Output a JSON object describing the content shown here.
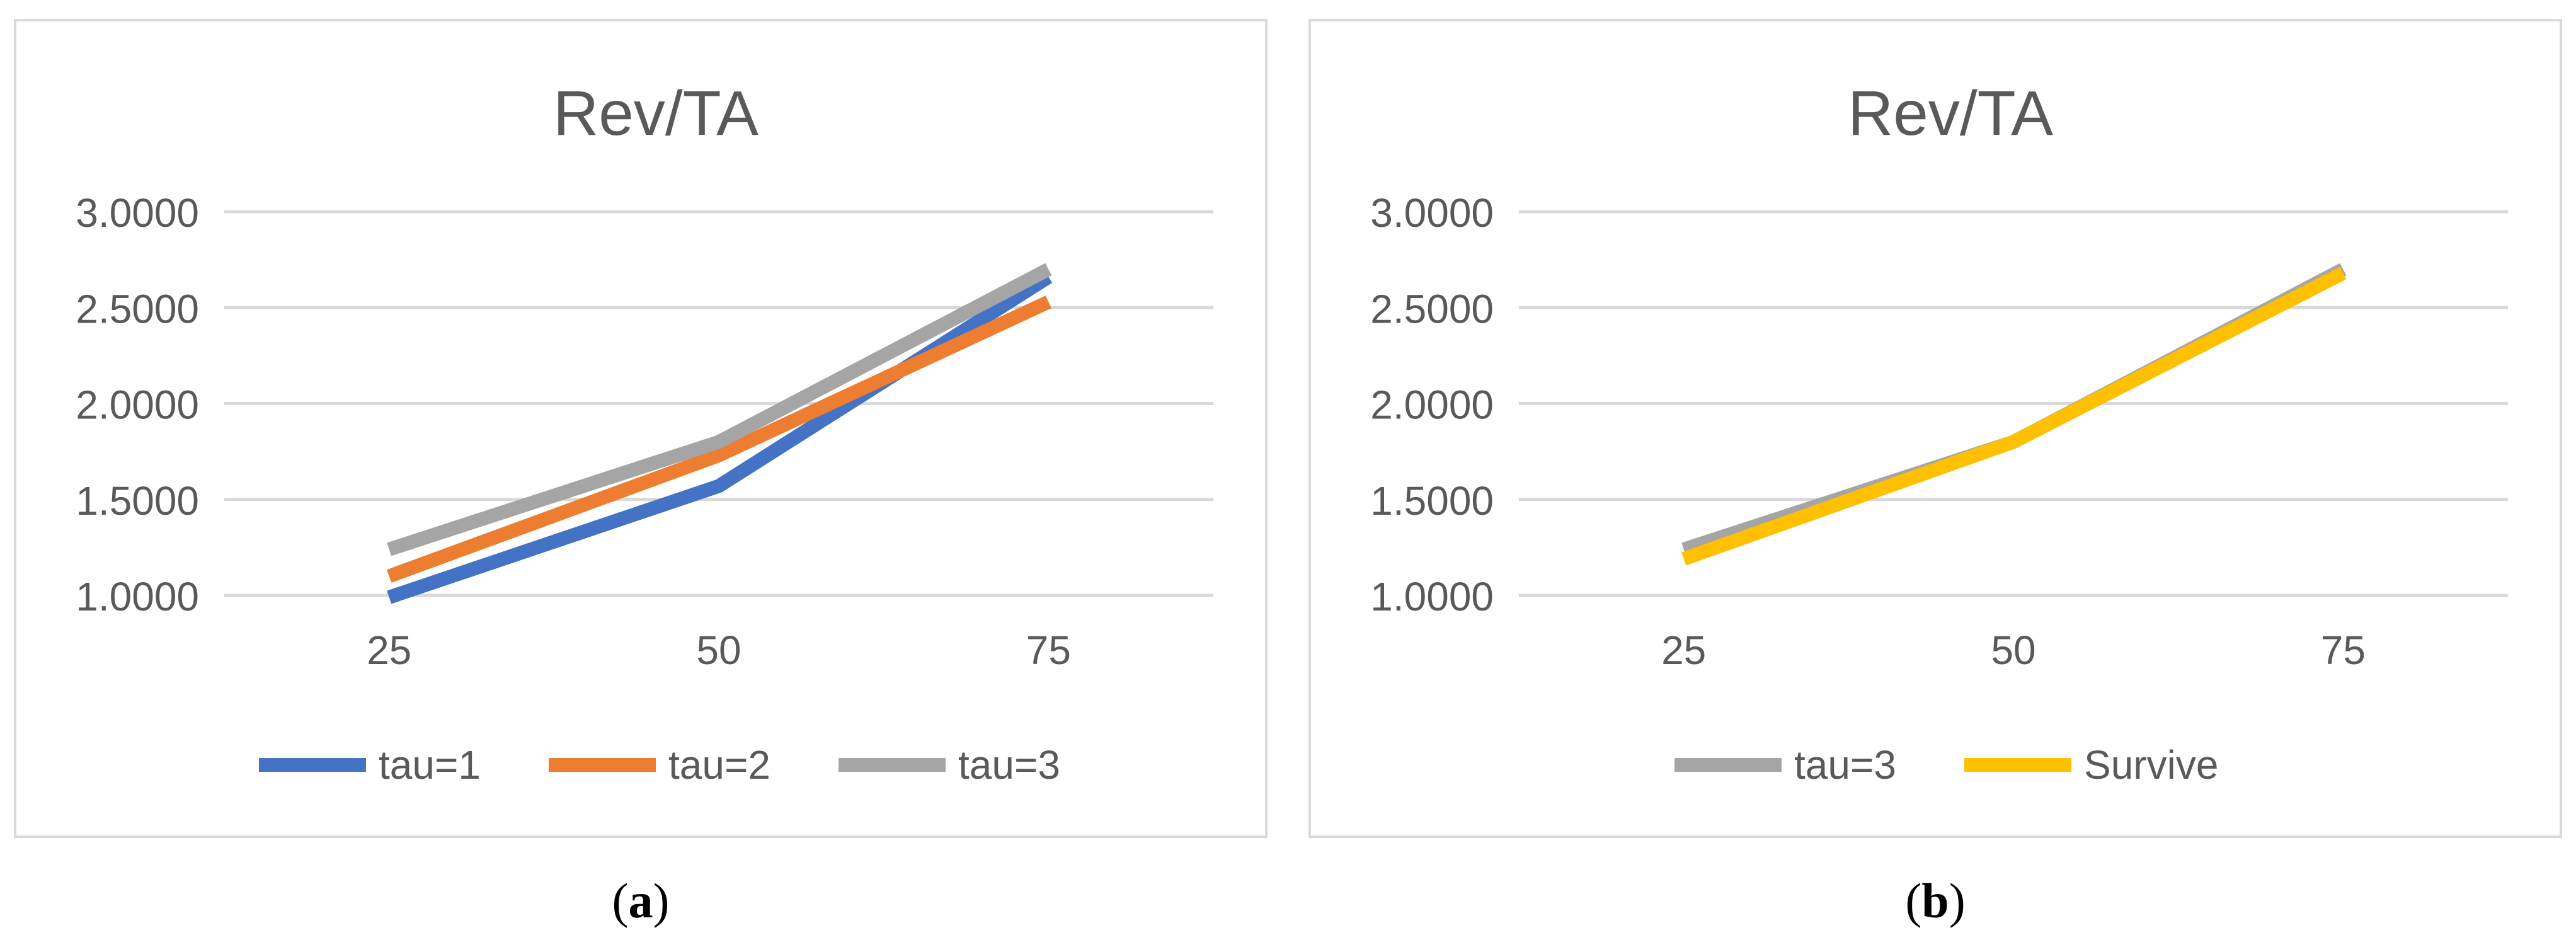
{
  "chart_data": [
    {
      "type": "line",
      "title": "Rev/TA",
      "categories": [
        "25",
        "50",
        "75"
      ],
      "ylim": [
        1.0,
        3.0
      ],
      "yticks": [
        "1.0000",
        "1.5000",
        "2.0000",
        "2.5000",
        "3.0000"
      ],
      "grid": true,
      "legend_position": "bottom",
      "series": [
        {
          "name": "tau=1",
          "values": [
            0.99,
            1.57,
            2.66
          ],
          "color": "#4472c4"
        },
        {
          "name": "tau=2",
          "values": [
            1.1,
            1.73,
            2.53
          ],
          "color": "#ed7d31"
        },
        {
          "name": "tau=3",
          "values": [
            1.24,
            1.8,
            2.7
          ],
          "color": "#a5a5a5"
        }
      ]
    },
    {
      "type": "line",
      "title": "Rev/TA",
      "categories": [
        "25",
        "50",
        "75"
      ],
      "ylim": [
        1.0,
        3.0
      ],
      "yticks": [
        "1.0000",
        "1.5000",
        "2.0000",
        "2.5000",
        "3.0000"
      ],
      "grid": true,
      "legend_position": "bottom",
      "series": [
        {
          "name": "tau=3",
          "values": [
            1.24,
            1.8,
            2.7
          ],
          "color": "#a5a5a5"
        },
        {
          "name": "Survive",
          "values": [
            1.19,
            1.8,
            2.68
          ],
          "color": "#ffc000"
        }
      ]
    }
  ],
  "captions": {
    "a": {
      "open": "(",
      "letter": "a",
      "close": ")"
    },
    "b": {
      "open": "(",
      "letter": "b",
      "close": ")"
    }
  }
}
